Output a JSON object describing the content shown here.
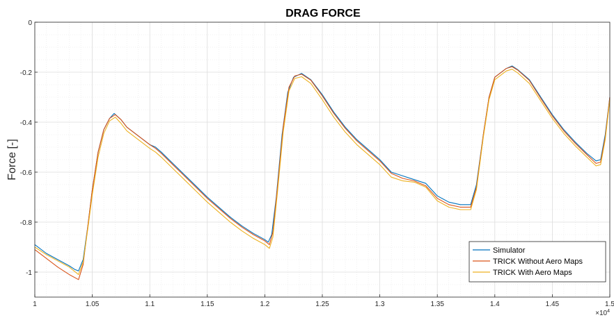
{
  "chart_data": {
    "type": "line",
    "title": "DRAG FORCE",
    "xlabel": "",
    "ylabel": "Force [-]",
    "x_exponent_label": "×10",
    "x_exponent_power": "4",
    "xlim": [
      10000,
      15000
    ],
    "ylim": [
      -1.1,
      0
    ],
    "x_ticks": [
      10000,
      10500,
      11000,
      11500,
      12000,
      12500,
      13000,
      13500,
      14000,
      14500,
      15000
    ],
    "x_tick_labels": [
      "1",
      "1.05",
      "1.1",
      "1.15",
      "1.2",
      "1.25",
      "1.3",
      "1.35",
      "1.4",
      "1.45",
      "1.5"
    ],
    "y_ticks": [
      0,
      -0.2,
      -0.4,
      -0.6,
      -0.8,
      -1
    ],
    "y_tick_labels": [
      "0",
      "-0.2",
      "-0.4",
      "-0.6",
      "-0.8",
      "-1"
    ],
    "grid": true,
    "minor_grid": true,
    "legend_position": "bottom-right",
    "series": [
      {
        "name": "Simulator",
        "color": "#0072BD",
        "points": [
          [
            10000,
            -0.89
          ],
          [
            10100,
            -0.925
          ],
          [
            10200,
            -0.95
          ],
          [
            10300,
            -0.975
          ],
          [
            10350,
            -0.99
          ],
          [
            10380,
            -0.995
          ],
          [
            10420,
            -0.95
          ],
          [
            10460,
            -0.82
          ],
          [
            10500,
            -0.67
          ],
          [
            10550,
            -0.52
          ],
          [
            10600,
            -0.43
          ],
          [
            10650,
            -0.385
          ],
          [
            10690,
            -0.365
          ],
          [
            10750,
            -0.39
          ],
          [
            10800,
            -0.42
          ],
          [
            10900,
            -0.455
          ],
          [
            11000,
            -0.49
          ],
          [
            11050,
            -0.5
          ],
          [
            11100,
            -0.52
          ],
          [
            11200,
            -0.565
          ],
          [
            11300,
            -0.61
          ],
          [
            11400,
            -0.655
          ],
          [
            11500,
            -0.7
          ],
          [
            11600,
            -0.74
          ],
          [
            11700,
            -0.78
          ],
          [
            11800,
            -0.815
          ],
          [
            11900,
            -0.845
          ],
          [
            12000,
            -0.87
          ],
          [
            12030,
            -0.88
          ],
          [
            12060,
            -0.85
          ],
          [
            12100,
            -0.7
          ],
          [
            12150,
            -0.45
          ],
          [
            12200,
            -0.28
          ],
          [
            12250,
            -0.22
          ],
          [
            12320,
            -0.205
          ],
          [
            12400,
            -0.23
          ],
          [
            12500,
            -0.29
          ],
          [
            12600,
            -0.36
          ],
          [
            12700,
            -0.42
          ],
          [
            12800,
            -0.47
          ],
          [
            12900,
            -0.51
          ],
          [
            13000,
            -0.55
          ],
          [
            13100,
            -0.6
          ],
          [
            13200,
            -0.615
          ],
          [
            13300,
            -0.63
          ],
          [
            13400,
            -0.645
          ],
          [
            13500,
            -0.695
          ],
          [
            13600,
            -0.72
          ],
          [
            13700,
            -0.73
          ],
          [
            13790,
            -0.73
          ],
          [
            13840,
            -0.65
          ],
          [
            13900,
            -0.45
          ],
          [
            13950,
            -0.3
          ],
          [
            14000,
            -0.22
          ],
          [
            14100,
            -0.185
          ],
          [
            14150,
            -0.175
          ],
          [
            14200,
            -0.19
          ],
          [
            14300,
            -0.23
          ],
          [
            14400,
            -0.3
          ],
          [
            14500,
            -0.37
          ],
          [
            14600,
            -0.43
          ],
          [
            14700,
            -0.48
          ],
          [
            14800,
            -0.525
          ],
          [
            14880,
            -0.555
          ],
          [
            14920,
            -0.55
          ],
          [
            14960,
            -0.45
          ],
          [
            15000,
            -0.3
          ]
        ]
      },
      {
        "name": "TRICK Without Aero Maps",
        "color": "#D95319",
        "points": [
          [
            10000,
            -0.91
          ],
          [
            10100,
            -0.945
          ],
          [
            10200,
            -0.98
          ],
          [
            10300,
            -1.01
          ],
          [
            10380,
            -1.03
          ],
          [
            10420,
            -0.97
          ],
          [
            10460,
            -0.82
          ],
          [
            10500,
            -0.67
          ],
          [
            10550,
            -0.52
          ],
          [
            10600,
            -0.43
          ],
          [
            10650,
            -0.385
          ],
          [
            10700,
            -0.37
          ],
          [
            10750,
            -0.39
          ],
          [
            10800,
            -0.42
          ],
          [
            10900,
            -0.455
          ],
          [
            11000,
            -0.49
          ],
          [
            11050,
            -0.505
          ],
          [
            11100,
            -0.525
          ],
          [
            11200,
            -0.57
          ],
          [
            11300,
            -0.615
          ],
          [
            11400,
            -0.66
          ],
          [
            11500,
            -0.705
          ],
          [
            11600,
            -0.745
          ],
          [
            11700,
            -0.785
          ],
          [
            11800,
            -0.82
          ],
          [
            11900,
            -0.85
          ],
          [
            12000,
            -0.875
          ],
          [
            12040,
            -0.89
          ],
          [
            12070,
            -0.84
          ],
          [
            12110,
            -0.66
          ],
          [
            12160,
            -0.42
          ],
          [
            12210,
            -0.26
          ],
          [
            12260,
            -0.215
          ],
          [
            12320,
            -0.208
          ],
          [
            12400,
            -0.232
          ],
          [
            12500,
            -0.295
          ],
          [
            12600,
            -0.365
          ],
          [
            12700,
            -0.425
          ],
          [
            12800,
            -0.475
          ],
          [
            12900,
            -0.515
          ],
          [
            13000,
            -0.555
          ],
          [
            13100,
            -0.605
          ],
          [
            13200,
            -0.625
          ],
          [
            13300,
            -0.635
          ],
          [
            13400,
            -0.655
          ],
          [
            13500,
            -0.705
          ],
          [
            13600,
            -0.73
          ],
          [
            13700,
            -0.74
          ],
          [
            13790,
            -0.74
          ],
          [
            13840,
            -0.66
          ],
          [
            13900,
            -0.45
          ],
          [
            13950,
            -0.3
          ],
          [
            14000,
            -0.22
          ],
          [
            14100,
            -0.185
          ],
          [
            14150,
            -0.178
          ],
          [
            14200,
            -0.192
          ],
          [
            14300,
            -0.233
          ],
          [
            14400,
            -0.305
          ],
          [
            14500,
            -0.375
          ],
          [
            14600,
            -0.435
          ],
          [
            14700,
            -0.485
          ],
          [
            14800,
            -0.53
          ],
          [
            14880,
            -0.565
          ],
          [
            14920,
            -0.56
          ],
          [
            14960,
            -0.46
          ],
          [
            15000,
            -0.3
          ]
        ]
      },
      {
        "name": "TRICK With Aero Maps",
        "color": "#EDB120",
        "points": [
          [
            10000,
            -0.9
          ],
          [
            10100,
            -0.93
          ],
          [
            10200,
            -0.955
          ],
          [
            10300,
            -0.98
          ],
          [
            10380,
            -1.01
          ],
          [
            10420,
            -0.96
          ],
          [
            10460,
            -0.83
          ],
          [
            10500,
            -0.69
          ],
          [
            10550,
            -0.54
          ],
          [
            10600,
            -0.445
          ],
          [
            10650,
            -0.395
          ],
          [
            10700,
            -0.38
          ],
          [
            10750,
            -0.405
          ],
          [
            10800,
            -0.435
          ],
          [
            10900,
            -0.47
          ],
          [
            11000,
            -0.505
          ],
          [
            11050,
            -0.52
          ],
          [
            11100,
            -0.54
          ],
          [
            11200,
            -0.585
          ],
          [
            11300,
            -0.63
          ],
          [
            11400,
            -0.675
          ],
          [
            11500,
            -0.72
          ],
          [
            11600,
            -0.76
          ],
          [
            11700,
            -0.8
          ],
          [
            11800,
            -0.835
          ],
          [
            11900,
            -0.865
          ],
          [
            12000,
            -0.89
          ],
          [
            12040,
            -0.905
          ],
          [
            12070,
            -0.86
          ],
          [
            12110,
            -0.68
          ],
          [
            12160,
            -0.44
          ],
          [
            12210,
            -0.275
          ],
          [
            12260,
            -0.225
          ],
          [
            12320,
            -0.218
          ],
          [
            12400,
            -0.245
          ],
          [
            12500,
            -0.31
          ],
          [
            12600,
            -0.38
          ],
          [
            12700,
            -0.44
          ],
          [
            12800,
            -0.49
          ],
          [
            12900,
            -0.53
          ],
          [
            13000,
            -0.57
          ],
          [
            13100,
            -0.62
          ],
          [
            13200,
            -0.635
          ],
          [
            13300,
            -0.64
          ],
          [
            13400,
            -0.66
          ],
          [
            13500,
            -0.715
          ],
          [
            13600,
            -0.74
          ],
          [
            13700,
            -0.75
          ],
          [
            13790,
            -0.75
          ],
          [
            13840,
            -0.67
          ],
          [
            13900,
            -0.46
          ],
          [
            13950,
            -0.31
          ],
          [
            14000,
            -0.23
          ],
          [
            14100,
            -0.195
          ],
          [
            14150,
            -0.188
          ],
          [
            14200,
            -0.203
          ],
          [
            14300,
            -0.245
          ],
          [
            14400,
            -0.315
          ],
          [
            14500,
            -0.385
          ],
          [
            14600,
            -0.445
          ],
          [
            14700,
            -0.495
          ],
          [
            14800,
            -0.54
          ],
          [
            14880,
            -0.575
          ],
          [
            14920,
            -0.57
          ],
          [
            14960,
            -0.47
          ],
          [
            15000,
            -0.31
          ]
        ]
      }
    ]
  }
}
